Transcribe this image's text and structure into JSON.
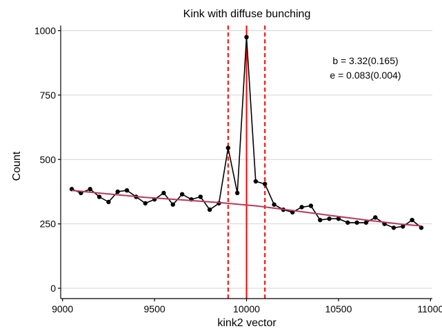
{
  "chart_data": {
    "type": "line",
    "title": "Kink with diffuse bunching",
    "xlabel": "kink2  vector",
    "ylabel": "Count",
    "xlim": [
      8990,
      11010
    ],
    "ylim": [
      -40,
      1020
    ],
    "x_ticks": [
      9000,
      9500,
      10000,
      10500,
      11000
    ],
    "x_tick_labels": [
      "9000",
      "9500",
      "10000",
      "10500",
      "11000"
    ],
    "y_ticks": [
      0,
      250,
      500,
      750,
      1000
    ],
    "y_tick_labels": [
      "0",
      "250",
      "500",
      "750",
      "1000"
    ],
    "grid": "horizontal",
    "annotations": [
      "b = 3.32(0.165)",
      "e = 0.083(0.004)"
    ],
    "vlines": [
      {
        "x": 9900,
        "style": "dashed",
        "color": "#ff0000"
      },
      {
        "x": 10000,
        "style": "solid",
        "color": "#ff0000"
      },
      {
        "x": 10100,
        "style": "dashed",
        "color": "#ff0000"
      }
    ],
    "series": [
      {
        "kind": "observed",
        "color": "#000000",
        "x": [
          9050,
          9100,
          9150,
          9200,
          9250,
          9300,
          9350,
          9400,
          9450,
          9500,
          9550,
          9600,
          9650,
          9700,
          9750,
          9800,
          9850,
          9900,
          9950,
          10000,
          10050,
          10100,
          10150,
          10200,
          10250,
          10300,
          10350,
          10400,
          10450,
          10500,
          10550,
          10600,
          10650,
          10700,
          10750,
          10800,
          10850,
          10900,
          10950
        ],
        "y": [
          385,
          370,
          385,
          355,
          335,
          375,
          380,
          355,
          330,
          345,
          370,
          325,
          365,
          345,
          355,
          305,
          330,
          545,
          370,
          975,
          415,
          405,
          325,
          305,
          295,
          315,
          320,
          265,
          270,
          270,
          255,
          255,
          255,
          275,
          250,
          235,
          240,
          265,
          235
        ]
      },
      {
        "kind": "fit",
        "color": "#b5395a",
        "x": [
          9050,
          9250,
          9450,
          9650,
          9850,
          10050,
          10250,
          10450,
          10650,
          10850,
          10950
        ],
        "y": [
          380,
          366,
          353,
          343,
          333,
          320,
          302,
          283,
          265,
          248,
          242
        ]
      }
    ]
  }
}
